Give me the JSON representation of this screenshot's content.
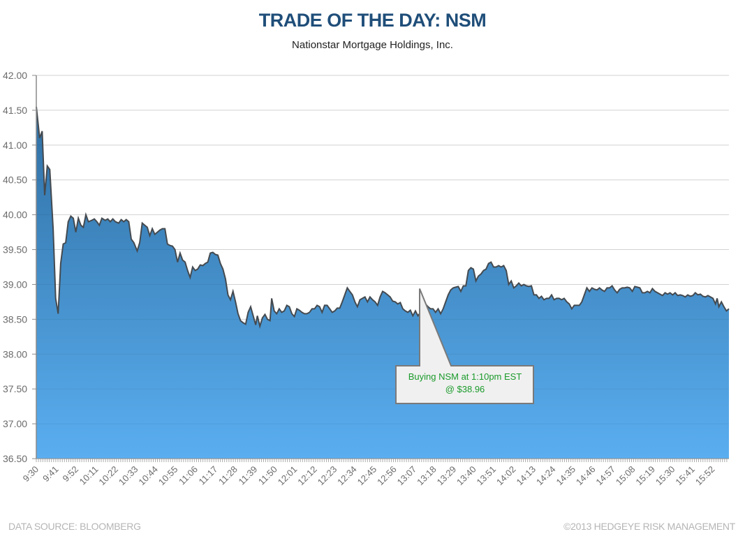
{
  "header": {
    "title": "TRADE OF THE DAY: NSM",
    "subtitle": "Nationstar Mortgage Holdings, Inc."
  },
  "footer": {
    "source": "DATA SOURCE: BLOOMBERG",
    "copyright": "©2013 HEDGEYE RISK MANAGEMENT"
  },
  "annotation": {
    "line1": "Buying NSM at 1:10pm EST",
    "line2": "@ $38.96",
    "time": "13:10",
    "price": 38.96,
    "text_color": "#1a9a2a"
  },
  "colors": {
    "title": "#1f4e79",
    "area_top": "#2f6fa3",
    "area_bottom": "#5aaef0",
    "line": "#444a50",
    "grid": "#e0e0e0",
    "axis": "#8a8a8a",
    "callout_fill": "#f0f0f0",
    "callout_stroke": "#7a7a7a"
  },
  "chart_data": {
    "type": "area",
    "title": "TRADE OF THE DAY: NSM",
    "subtitle": "Nationstar Mortgage Holdings, Inc.",
    "xlabel": "",
    "ylabel": "",
    "ylim": [
      36.5,
      42.0
    ],
    "yticks": [
      "42.00",
      "41.50",
      "41.00",
      "40.50",
      "40.00",
      "39.50",
      "39.00",
      "38.50",
      "38.00",
      "37.50",
      "37.00",
      "36.50"
    ],
    "xticks": [
      "9:30",
      "9:41",
      "9:52",
      "10:11",
      "10:22",
      "10:33",
      "10:44",
      "10:55",
      "11:06",
      "11:17",
      "11:28",
      "11:39",
      "11:50",
      "12:01",
      "12:12",
      "12:23",
      "12:34",
      "12:45",
      "12:56",
      "13:07",
      "13:18",
      "13:29",
      "13:40",
      "13:51",
      "14:02",
      "14:13",
      "14:24",
      "14:35",
      "14:46",
      "14:57",
      "15:08",
      "15:19",
      "15:30",
      "15:41",
      "15:52"
    ],
    "grid": true,
    "legend": null,
    "series": [
      {
        "name": "NSM",
        "x_index_max": 1000,
        "points": [
          [
            0,
            41.55
          ],
          [
            4,
            41.1
          ],
          [
            7,
            41.2
          ],
          [
            10,
            40.28
          ],
          [
            13,
            40.7
          ],
          [
            16,
            40.65
          ],
          [
            20,
            39.8
          ],
          [
            23,
            38.8
          ],
          [
            26,
            38.58
          ],
          [
            29,
            39.3
          ],
          [
            32,
            39.58
          ],
          [
            35,
            39.6
          ],
          [
            38,
            39.9
          ],
          [
            41,
            39.98
          ],
          [
            44,
            39.95
          ],
          [
            47,
            39.75
          ],
          [
            50,
            39.95
          ],
          [
            53,
            39.85
          ],
          [
            56,
            39.82
          ],
          [
            59,
            40.0
          ],
          [
            62,
            39.9
          ],
          [
            66,
            39.92
          ],
          [
            69,
            39.94
          ],
          [
            72,
            39.9
          ],
          [
            75,
            39.85
          ],
          [
            78,
            39.95
          ],
          [
            82,
            39.92
          ],
          [
            85,
            39.94
          ],
          [
            88,
            39.9
          ],
          [
            91,
            39.94
          ],
          [
            94,
            39.9
          ],
          [
            98,
            39.88
          ],
          [
            101,
            39.93
          ],
          [
            104,
            39.9
          ],
          [
            107,
            39.93
          ],
          [
            110,
            39.9
          ],
          [
            113,
            39.65
          ],
          [
            116,
            39.6
          ],
          [
            120,
            39.48
          ],
          [
            123,
            39.6
          ],
          [
            126,
            39.88
          ],
          [
            129,
            39.85
          ],
          [
            132,
            39.82
          ],
          [
            135,
            39.7
          ],
          [
            138,
            39.8
          ],
          [
            141,
            39.72
          ],
          [
            144,
            39.75
          ],
          [
            147,
            39.78
          ],
          [
            150,
            39.8
          ],
          [
            153,
            39.8
          ],
          [
            156,
            39.58
          ],
          [
            159,
            39.56
          ],
          [
            162,
            39.55
          ],
          [
            165,
            39.5
          ],
          [
            168,
            39.32
          ],
          [
            171,
            39.45
          ],
          [
            174,
            39.35
          ],
          [
            177,
            39.32
          ],
          [
            180,
            39.2
          ],
          [
            183,
            39.1
          ],
          [
            186,
            39.25
          ],
          [
            189,
            39.2
          ],
          [
            192,
            39.22
          ],
          [
            195,
            39.28
          ],
          [
            198,
            39.27
          ],
          [
            201,
            39.3
          ],
          [
            204,
            39.32
          ],
          [
            207,
            39.45
          ],
          [
            210,
            39.46
          ],
          [
            213,
            39.43
          ],
          [
            216,
            39.42
          ],
          [
            219,
            39.3
          ],
          [
            222,
            39.22
          ],
          [
            225,
            39.08
          ],
          [
            228,
            38.85
          ],
          [
            231,
            38.78
          ],
          [
            234,
            38.9
          ],
          [
            237,
            38.75
          ],
          [
            240,
            38.58
          ],
          [
            243,
            38.48
          ],
          [
            246,
            38.45
          ],
          [
            249,
            38.43
          ],
          [
            252,
            38.6
          ],
          [
            255,
            38.68
          ],
          [
            258,
            38.55
          ],
          [
            261,
            38.42
          ],
          [
            263,
            38.55
          ],
          [
            266,
            38.4
          ],
          [
            269,
            38.52
          ],
          [
            272,
            38.57
          ],
          [
            275,
            38.5
          ],
          [
            278,
            38.48
          ],
          [
            280,
            38.8
          ],
          [
            283,
            38.62
          ],
          [
            286,
            38.58
          ],
          [
            289,
            38.65
          ],
          [
            292,
            38.6
          ],
          [
            295,
            38.62
          ],
          [
            298,
            38.7
          ],
          [
            301,
            38.68
          ],
          [
            304,
            38.58
          ],
          [
            307,
            38.54
          ],
          [
            310,
            38.65
          ],
          [
            313,
            38.63
          ],
          [
            316,
            38.6
          ],
          [
            319,
            38.58
          ],
          [
            322,
            38.58
          ],
          [
            325,
            38.6
          ],
          [
            328,
            38.65
          ],
          [
            331,
            38.65
          ],
          [
            334,
            38.7
          ],
          [
            337,
            38.68
          ],
          [
            340,
            38.6
          ],
          [
            343,
            38.7
          ],
          [
            346,
            38.7
          ],
          [
            349,
            38.65
          ],
          [
            352,
            38.6
          ],
          [
            355,
            38.62
          ],
          [
            358,
            38.66
          ],
          [
            361,
            38.66
          ],
          [
            364,
            38.75
          ],
          [
            367,
            38.85
          ],
          [
            370,
            38.95
          ],
          [
            373,
            38.9
          ],
          [
            376,
            38.85
          ],
          [
            379,
            38.75
          ],
          [
            382,
            38.68
          ],
          [
            385,
            38.78
          ],
          [
            388,
            38.8
          ],
          [
            391,
            38.82
          ],
          [
            394,
            38.75
          ],
          [
            397,
            38.82
          ],
          [
            400,
            38.78
          ],
          [
            403,
            38.75
          ],
          [
            406,
            38.7
          ],
          [
            409,
            38.82
          ],
          [
            412,
            38.9
          ],
          [
            415,
            38.88
          ],
          [
            418,
            38.85
          ],
          [
            421,
            38.82
          ],
          [
            424,
            38.76
          ],
          [
            427,
            38.75
          ],
          [
            430,
            38.72
          ],
          [
            433,
            38.74
          ],
          [
            436,
            38.65
          ],
          [
            439,
            38.62
          ],
          [
            442,
            38.6
          ],
          [
            445,
            38.63
          ],
          [
            448,
            38.55
          ],
          [
            451,
            38.62
          ],
          [
            454,
            38.55
          ],
          [
            457,
            38.6
          ],
          [
            460,
            38.66
          ],
          [
            463,
            38.72
          ],
          [
            466,
            38.68
          ],
          [
            469,
            38.65
          ],
          [
            472,
            38.65
          ],
          [
            475,
            38.6
          ],
          [
            478,
            38.65
          ],
          [
            481,
            38.58
          ],
          [
            484,
            38.65
          ],
          [
            487,
            38.75
          ],
          [
            490,
            38.85
          ],
          [
            493,
            38.92
          ],
          [
            496,
            38.95
          ],
          [
            499,
            38.96
          ],
          [
            502,
            38.97
          ],
          [
            505,
            38.9
          ],
          [
            508,
            38.98
          ],
          [
            511,
            38.98
          ],
          [
            514,
            39.2
          ],
          [
            517,
            39.24
          ],
          [
            520,
            39.22
          ],
          [
            523,
            39.05
          ],
          [
            526,
            39.12
          ],
          [
            529,
            39.15
          ],
          [
            532,
            39.2
          ],
          [
            535,
            39.22
          ],
          [
            538,
            39.3
          ],
          [
            541,
            39.32
          ],
          [
            544,
            39.25
          ],
          [
            547,
            39.25
          ],
          [
            550,
            39.27
          ],
          [
            553,
            39.25
          ],
          [
            556,
            39.27
          ],
          [
            559,
            39.2
          ],
          [
            562,
            39.0
          ],
          [
            565,
            39.05
          ],
          [
            568,
            38.95
          ],
          [
            571,
            38.98
          ],
          [
            574,
            39.02
          ],
          [
            577,
            38.98
          ],
          [
            580,
            39.0
          ],
          [
            583,
            38.98
          ],
          [
            586,
            38.97
          ],
          [
            589,
            38.98
          ],
          [
            592,
            38.85
          ],
          [
            595,
            38.85
          ],
          [
            598,
            38.8
          ],
          [
            601,
            38.83
          ],
          [
            604,
            38.78
          ],
          [
            607,
            38.8
          ],
          [
            610,
            38.8
          ],
          [
            613,
            38.85
          ],
          [
            616,
            38.78
          ],
          [
            619,
            38.8
          ],
          [
            622,
            38.8
          ],
          [
            625,
            38.78
          ],
          [
            628,
            38.8
          ],
          [
            631,
            38.75
          ],
          [
            634,
            38.72
          ],
          [
            637,
            38.65
          ],
          [
            640,
            38.7
          ],
          [
            643,
            38.7
          ],
          [
            646,
            38.7
          ],
          [
            649,
            38.75
          ],
          [
            652,
            38.85
          ],
          [
            655,
            38.95
          ],
          [
            658,
            38.9
          ],
          [
            661,
            38.95
          ],
          [
            664,
            38.93
          ],
          [
            667,
            38.92
          ],
          [
            670,
            38.95
          ],
          [
            673,
            38.92
          ],
          [
            676,
            38.9
          ],
          [
            679,
            38.95
          ],
          [
            682,
            38.95
          ],
          [
            685,
            38.98
          ],
          [
            688,
            38.92
          ],
          [
            691,
            38.88
          ],
          [
            694,
            38.93
          ],
          [
            697,
            38.95
          ],
          [
            700,
            38.95
          ],
          [
            703,
            38.96
          ],
          [
            706,
            38.95
          ],
          [
            709,
            38.9
          ],
          [
            712,
            38.97
          ],
          [
            715,
            38.96
          ],
          [
            718,
            38.95
          ],
          [
            721,
            38.88
          ],
          [
            724,
            38.88
          ],
          [
            727,
            38.9
          ],
          [
            730,
            38.88
          ],
          [
            733,
            38.94
          ],
          [
            736,
            38.9
          ],
          [
            739,
            38.88
          ],
          [
            742,
            38.86
          ],
          [
            745,
            38.84
          ],
          [
            748,
            38.88
          ],
          [
            751,
            38.86
          ],
          [
            754,
            38.88
          ],
          [
            757,
            38.85
          ],
          [
            760,
            38.88
          ],
          [
            763,
            38.84
          ],
          [
            766,
            38.85
          ],
          [
            769,
            38.84
          ],
          [
            772,
            38.82
          ],
          [
            775,
            38.85
          ],
          [
            778,
            38.83
          ],
          [
            781,
            38.84
          ],
          [
            784,
            38.88
          ],
          [
            787,
            38.85
          ],
          [
            790,
            38.86
          ],
          [
            793,
            38.83
          ],
          [
            796,
            38.82
          ],
          [
            799,
            38.84
          ],
          [
            802,
            38.82
          ],
          [
            805,
            38.8
          ],
          [
            808,
            38.72
          ],
          [
            810,
            38.8
          ],
          [
            812,
            38.68
          ],
          [
            815,
            38.75
          ],
          [
            818,
            38.68
          ],
          [
            821,
            38.62
          ],
          [
            824,
            38.65
          ]
        ]
      }
    ]
  }
}
